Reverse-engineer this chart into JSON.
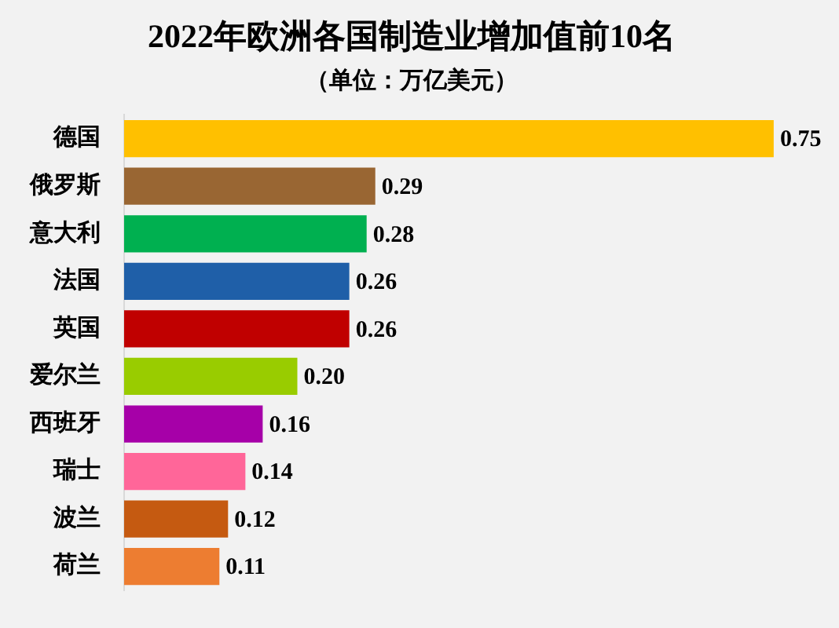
{
  "chart_data": {
    "type": "bar",
    "orientation": "horizontal",
    "title": "2022年欧洲各国制造业增加值前10名",
    "subtitle": "（单位：万亿美元）",
    "categories": [
      "德国",
      "俄罗斯",
      "意大利",
      "法国",
      "英国",
      "爱尔兰",
      "西班牙",
      "瑞士",
      "波兰",
      "荷兰"
    ],
    "values": [
      0.75,
      0.29,
      0.28,
      0.26,
      0.26,
      0.2,
      0.16,
      0.14,
      0.12,
      0.11
    ],
    "colors": [
      "#ffc000",
      "#996633",
      "#00b050",
      "#1f5fa8",
      "#c00000",
      "#99cc00",
      "#a600a8",
      "#ff6699",
      "#c55a11",
      "#ed7d31"
    ],
    "value_labels": [
      "0.75",
      "0.29",
      "0.28",
      "0.26",
      "0.26",
      "0.20",
      "0.16",
      "0.14",
      "0.12",
      "0.11"
    ],
    "tick_labels": "y"
  }
}
